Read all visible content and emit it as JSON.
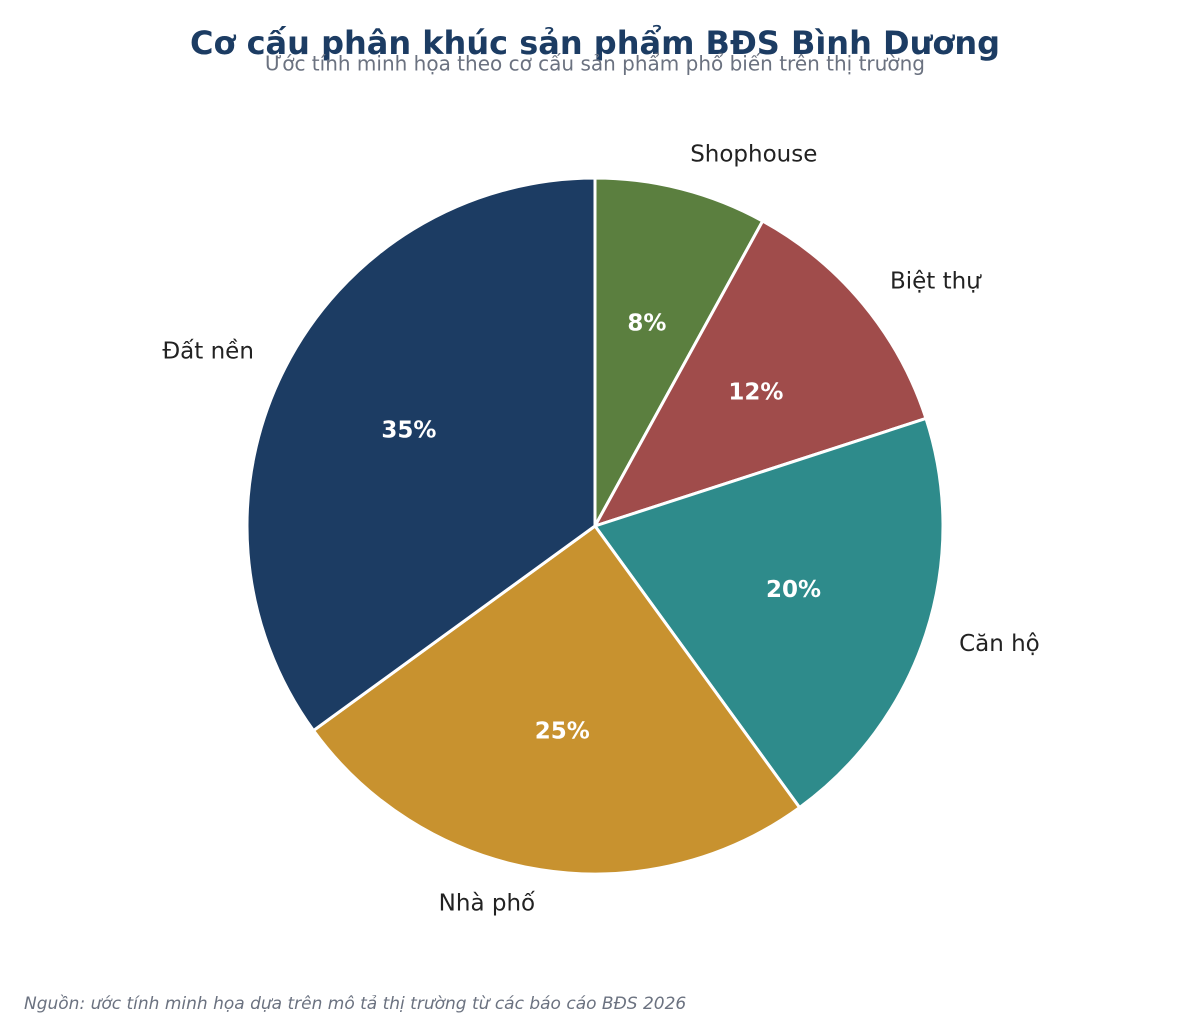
{
  "chart_data": {
    "type": "pie",
    "title": "Cơ cấu phân khúc sản phẩm BĐS Bình Dương",
    "subtitle": "Ước tính minh họa theo cơ cấu sản phẩm phổ biến trên thị trường",
    "categories": [
      "Shophouse",
      "Biệt thự",
      "Căn hộ",
      "Nhà phố",
      "Đất nền"
    ],
    "values": [
      8,
      12,
      20,
      25,
      35
    ],
    "value_labels": [
      "8%",
      "12%",
      "20%",
      "25%",
      "35%"
    ],
    "colors": [
      "#5b7f3f",
      "#a04c4b",
      "#2e8b8b",
      "#c8922f",
      "#1c3c63"
    ],
    "source": "Nguồn: ước tính minh họa dựa trên mô tả thị trường từ các báo cáo BĐS 2026"
  }
}
